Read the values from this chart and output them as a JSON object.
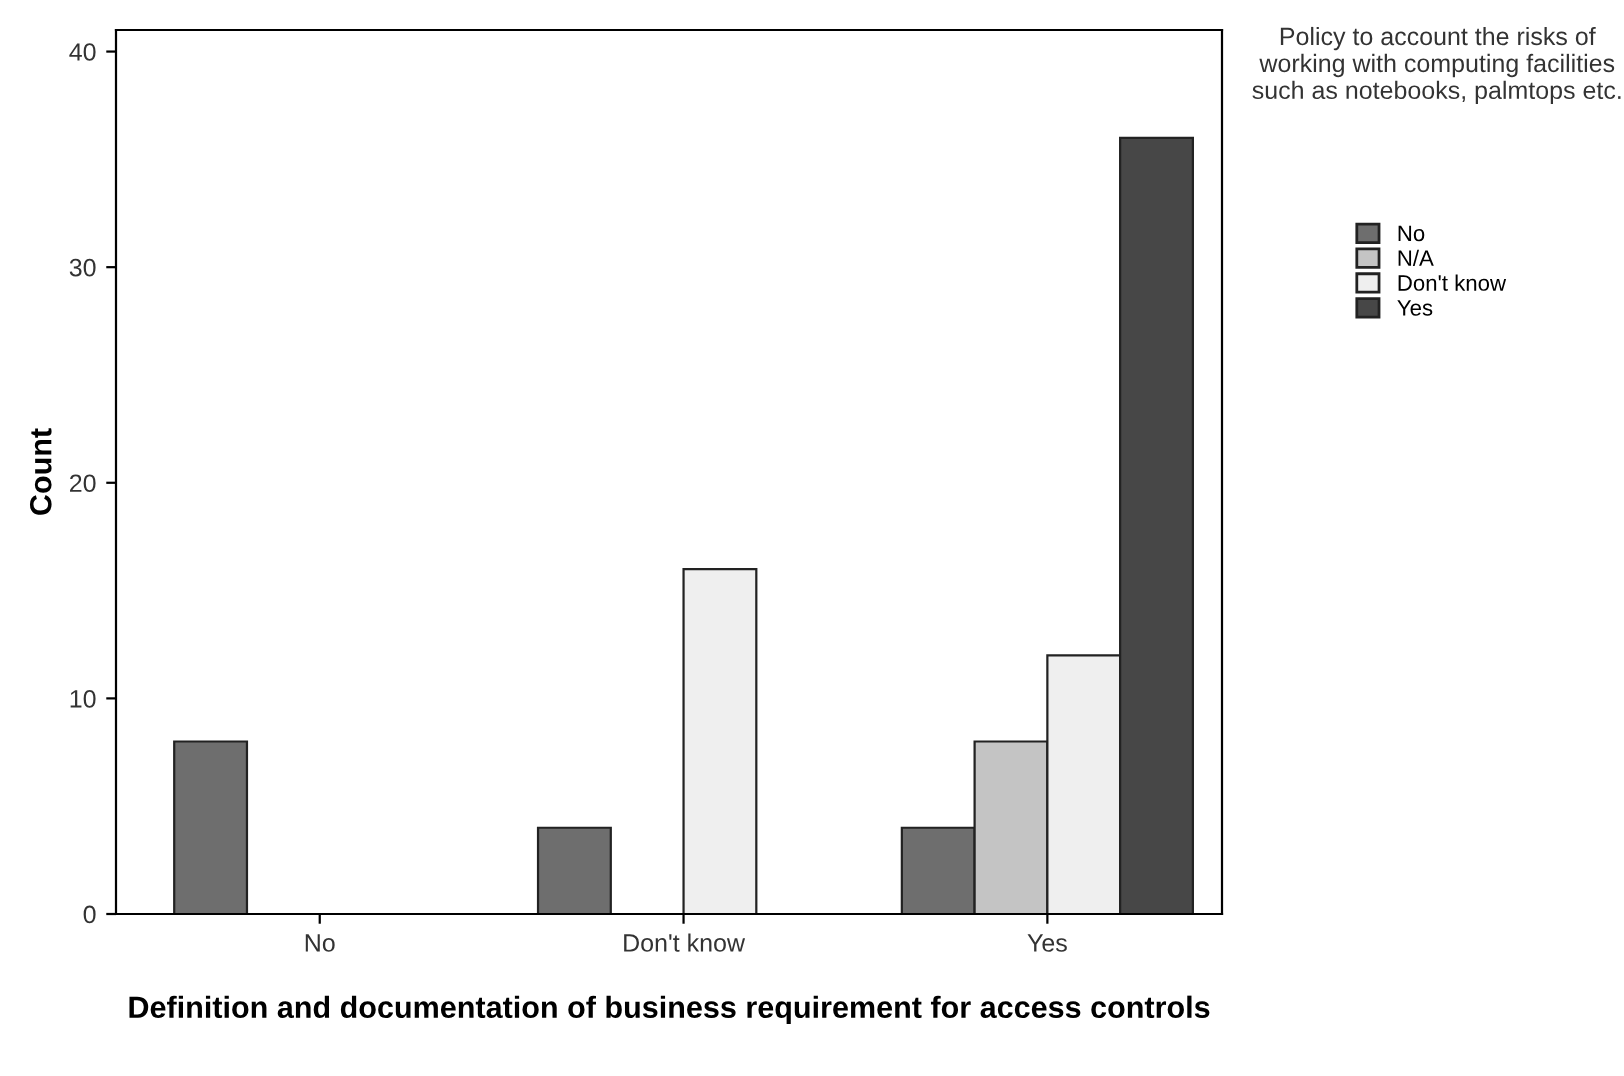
{
  "chart_data": {
    "type": "bar",
    "xlabel": "Definition and documentation of business requirement for access controls",
    "ylabel": "Count",
    "legend_title": "Policy to account the risks of working with computing facilities such as notebooks, palmtops etc.",
    "categories": [
      "No",
      "Don't know",
      "Yes"
    ],
    "series": [
      {
        "name": "No",
        "color": "#6e6e6e",
        "values": [
          8,
          4,
          4
        ]
      },
      {
        "name": "N/A",
        "color": "#c4c4c4",
        "values": [
          null,
          null,
          8
        ]
      },
      {
        "name": "Don't know",
        "color": "#efefef",
        "values": [
          null,
          16,
          12
        ]
      },
      {
        "name": "Yes",
        "color": "#474747",
        "values": [
          null,
          null,
          36
        ]
      }
    ],
    "ylim": [
      0,
      41
    ],
    "yticks": [
      0,
      10,
      20,
      30,
      40
    ],
    "grid": false,
    "legend": "top right"
  }
}
